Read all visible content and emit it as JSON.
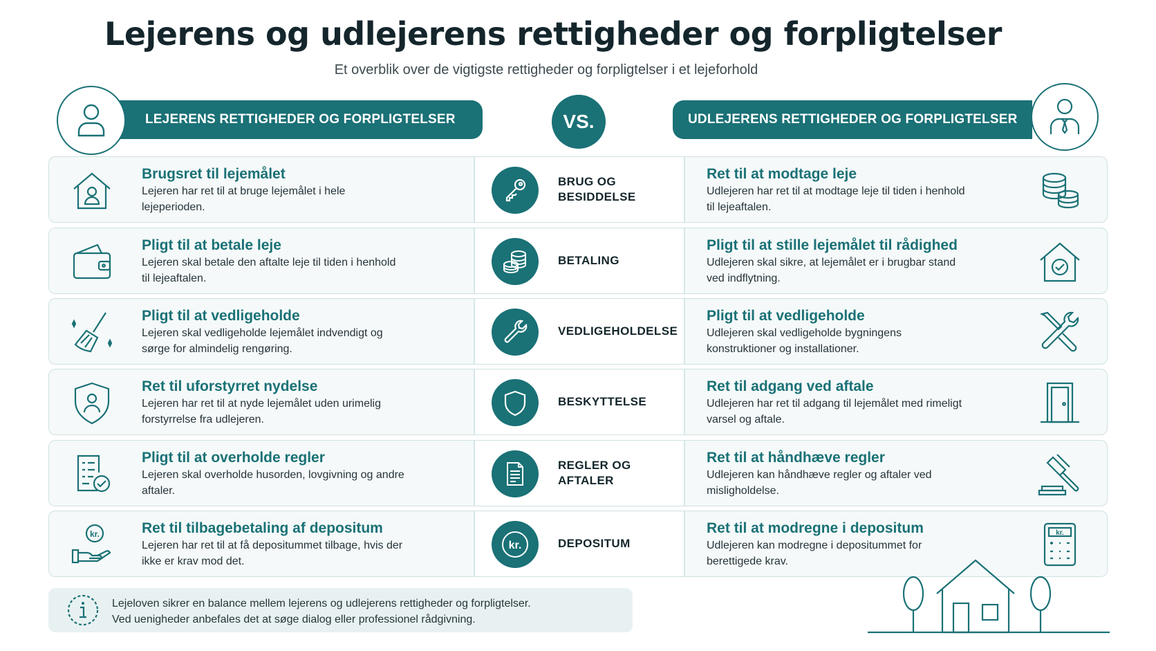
{
  "header": {
    "title": "Lejerens og udlejerens rettigheder og forpligtelser",
    "subtitle": "Et overblik over de vigtigste rettigheder og forpligtelser i et lejeforhold"
  },
  "banners": {
    "left": "LEJERENS RETTIGHEDER OG FORPLIGTELSER",
    "vs": "VS.",
    "right": "UDLEJERENS RETTIGHEDER OG FORPLIGTELSER"
  },
  "rows": [
    {
      "left_icon": "house-person-icon",
      "left_title": "Brugsret til lejemålet",
      "left_text": "Lejeren har ret til at bruge lejemålet i hele lejeperioden.",
      "center_icon": "key-icon",
      "center_label": "BRUG OG BESIDDELSE",
      "right_title": "Ret til at modtage leje",
      "right_text": "Udlejeren har ret til at modtage leje til tiden i henhold til lejeaftalen.",
      "right_icon": "coins-icon"
    },
    {
      "left_icon": "wallet-icon",
      "left_title": "Pligt til at betale leje",
      "left_text": "Lejeren skal betale den aftalte leje til tiden i henhold til lejeaftalen.",
      "center_icon": "coins-icon",
      "center_label": "BETALING",
      "right_title": "Pligt til at stille lejemålet til rådighed",
      "right_text": "Udlejeren skal sikre, at lejemålet er i brugbar stand ved indflytning.",
      "right_icon": "house-check-icon"
    },
    {
      "left_icon": "broom-icon",
      "left_title": "Pligt til at vedligeholde",
      "left_text": "Lejeren skal vedligeholde lejemålet indvendigt og sørge for almindelig rengøring.",
      "center_icon": "wrench-icon",
      "center_label": "VEDLIGEHOLDELSE",
      "right_title": "Pligt til at vedligeholde",
      "right_text": "Udlejeren skal vedligeholde bygningens konstruktioner og installationer.",
      "right_icon": "tools-icon"
    },
    {
      "left_icon": "shield-person-icon",
      "left_title": "Ret til uforstyrret nydelse",
      "left_text": "Lejeren har ret til at nyde lejemålet uden urimelig forstyrrelse fra udlejeren.",
      "center_icon": "shield-icon",
      "center_label": "BESKYTTELSE",
      "right_title": "Ret til adgang ved aftale",
      "right_text": "Udlejeren har ret til adgang til lejemålet med rimeligt varsel og aftale.",
      "right_icon": "door-icon"
    },
    {
      "left_icon": "checklist-icon",
      "left_title": "Pligt til at overholde regler",
      "left_text": "Lejeren skal overholde husorden, lovgivning og andre aftaler.",
      "center_icon": "document-icon",
      "center_label": "REGLER OG AFTALER",
      "right_title": "Ret til at håndhæve regler",
      "right_text": "Udlejeren kan håndhæve regler og aftaler ved misligholdelse.",
      "right_icon": "gavel-icon"
    },
    {
      "left_icon": "hand-kr-icon",
      "left_title": "Ret til tilbagebetaling af depositum",
      "left_text": "Lejeren har ret til at få depositummet tilbage, hvis der ikke er krav mod det.",
      "center_icon": "kr-icon",
      "center_label": "DEPOSITUM",
      "right_title": "Ret til at modregne i depositum",
      "right_text": "Udlejeren kan modregne i depositummet for berettigede krav.",
      "right_icon": "calculator-icon"
    }
  ],
  "icon_text": {
    "kr_hand": "kr.",
    "kr_center": "kr.",
    "kr_calc": "kr."
  },
  "footer": {
    "note_line1": "Lejeloven sikrer en balance mellem lejerens og udlejerens rettigheder og forpligtelser.",
    "note_line2": "Ved uenigheder anbefales det at søge dialog eller professionel rådgivning.",
    "note_icon": "info-icon"
  },
  "colors": {
    "accent": "#1a7176",
    "text": "#14262c",
    "row_bg": "#f5f9f9"
  }
}
